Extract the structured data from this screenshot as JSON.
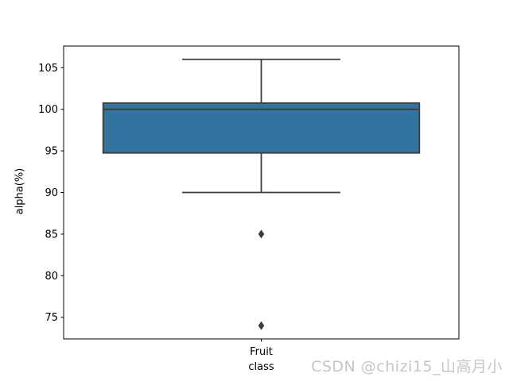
{
  "watermark": {
    "text": "CSDN @chizi15_山高月小",
    "color": "#c6c6c6"
  },
  "chart_data": {
    "type": "boxplot",
    "title": "",
    "xlabel": "",
    "ylabel": "alpha(%)",
    "categories": [
      "Fruit class"
    ],
    "xtick_label_lines": [
      "Fruit",
      "class"
    ],
    "yticks": [
      75,
      80,
      85,
      90,
      95,
      100,
      105
    ],
    "ylim": [
      72.4,
      107.6
    ],
    "grid": false,
    "legend_position": "none",
    "colors": {
      "box_fill": "#32749f",
      "box_edge": "#3c3c3c",
      "axis": "#000000",
      "tick_label": "#000000"
    },
    "series": [
      {
        "category": "Fruit class",
        "whisker_low": 90,
        "q1": 94.75,
        "median": 100,
        "q3": 100.75,
        "whisker_high": 106,
        "outliers": [
          85,
          74
        ]
      }
    ]
  }
}
